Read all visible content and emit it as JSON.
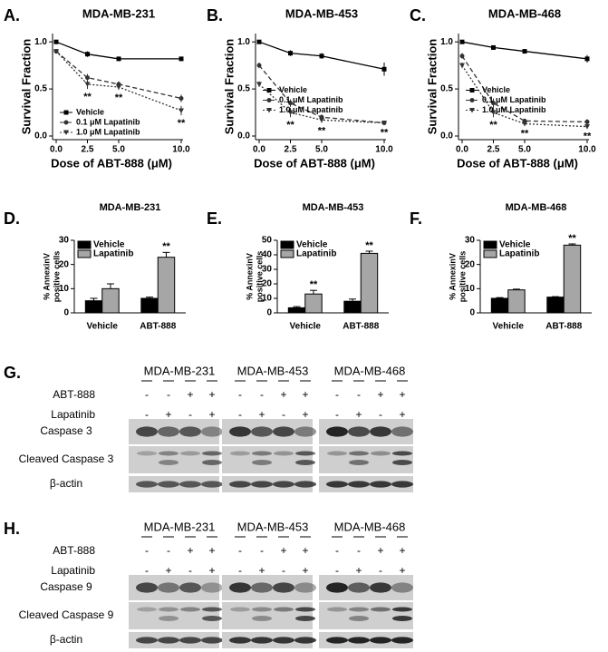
{
  "chart_data": [
    {
      "type": "line",
      "panel": "A.",
      "title": "MDA-MB-231",
      "x_label": "Dose of ABT-888 (μM)",
      "y_label": "Survival Fraction",
      "x": [
        0,
        2.5,
        5,
        10
      ],
      "xlim": [
        0,
        10
      ],
      "xticks": [
        {
          "value": 0,
          "label": "0.0"
        },
        2.5,
        {
          "value": 5,
          "label": "5.0"
        },
        {
          "value": 10,
          "label": "10.0"
        }
      ],
      "ylim": [
        0,
        1.05
      ],
      "yticks": [
        {
          "value": 0,
          "label": "0.0"
        },
        0.5,
        {
          "value": 1,
          "label": "1.0"
        }
      ],
      "legend": "lower left",
      "series": [
        {
          "name": "Vehicle",
          "color": "#000000",
          "values": [
            1.0,
            0.87,
            0.82,
            0.82
          ],
          "errors": [
            0.02,
            0.03,
            0.02,
            0.02
          ]
        },
        {
          "name": "0.1 μM Lapatinib",
          "color": "#333333",
          "values": [
            0.9,
            0.62,
            0.55,
            0.4
          ],
          "errors": [
            0.02,
            0.04,
            0.03,
            0.04
          ]
        },
        {
          "name": "1.0 μM Lapatinib",
          "color": "#333333",
          "values": [
            0.9,
            0.55,
            0.52,
            0.27
          ],
          "errors": [
            0.02,
            0.05,
            0.03,
            0.05
          ]
        }
      ],
      "annotations": [
        {
          "text": "**",
          "x": 2.5
        },
        {
          "text": "**",
          "x": 5
        },
        {
          "text": "**",
          "x": 10
        }
      ]
    },
    {
      "type": "line",
      "panel": "B.",
      "title": "MDA-MB-453",
      "x_label": "Dose of ABT-888 (μM)",
      "y_label": "Survival Fraction",
      "x": [
        0,
        2.5,
        5,
        10
      ],
      "xlim": [
        0,
        10
      ],
      "xticks": [
        {
          "value": 0,
          "label": "0.0"
        },
        2.5,
        {
          "value": 5,
          "label": "5.0"
        },
        {
          "value": 10,
          "label": "10.0"
        }
      ],
      "ylim": [
        0,
        1.05
      ],
      "yticks": [
        {
          "value": 0,
          "label": "0.0"
        },
        0.5,
        {
          "value": 1,
          "label": "1.0"
        }
      ],
      "legend": "center",
      "series": [
        {
          "name": "Vehicle",
          "color": "#000000",
          "values": [
            1.0,
            0.88,
            0.85,
            0.71
          ],
          "errors": [
            0.02,
            0.03,
            0.03,
            0.07
          ]
        },
        {
          "name": "0.1 μM Lapatinib",
          "color": "#333333",
          "values": [
            0.75,
            0.35,
            0.2,
            0.14
          ],
          "errors": [
            0.03,
            0.04,
            0.03,
            0.02
          ]
        },
        {
          "name": "1.0 μM Lapatinib",
          "color": "#333333",
          "values": [
            0.55,
            0.25,
            0.17,
            0.14
          ],
          "errors": [
            0.03,
            0.05,
            0.03,
            0.02
          ]
        }
      ],
      "annotations": [
        {
          "text": "**",
          "x": 2.5
        },
        {
          "text": "**",
          "x": 5
        },
        {
          "text": "**",
          "x": 10
        }
      ]
    },
    {
      "type": "line",
      "panel": "C.",
      "title": "MDA-MB-468",
      "x_label": "Dose of ABT-888 (μM)",
      "y_label": "Survival Fraction",
      "x": [
        0,
        2.5,
        5,
        10
      ],
      "xlim": [
        0,
        10
      ],
      "xticks": [
        {
          "value": 0,
          "label": "0.0"
        },
        2.5,
        {
          "value": 5,
          "label": "5.0"
        },
        {
          "value": 10,
          "label": "10.0"
        }
      ],
      "ylim": [
        0,
        1.05
      ],
      "yticks": [
        {
          "value": 0,
          "label": "0.0"
        },
        0.5,
        {
          "value": 1,
          "label": "1.0"
        }
      ],
      "legend": "center",
      "series": [
        {
          "name": "Vehicle",
          "color": "#000000",
          "values": [
            1.0,
            0.94,
            0.9,
            0.82
          ],
          "errors": [
            0.02,
            0.02,
            0.02,
            0.04
          ]
        },
        {
          "name": "0.1 μM Lapatinib",
          "color": "#333333",
          "values": [
            0.85,
            0.35,
            0.16,
            0.15
          ],
          "errors": [
            0.03,
            0.05,
            0.02,
            0.03
          ]
        },
        {
          "name": "1.0 μM Lapatinib",
          "color": "#333333",
          "values": [
            0.75,
            0.25,
            0.13,
            0.1
          ],
          "errors": [
            0.03,
            0.05,
            0.02,
            0.02
          ]
        }
      ],
      "annotations": [
        {
          "text": "**",
          "x": 2.5
        },
        {
          "text": "**",
          "x": 5
        },
        {
          "text": "**",
          "x": 10
        }
      ]
    },
    {
      "type": "bar",
      "panel": "D.",
      "title": "MDA-MB-231",
      "y_label": [
        "% AnnexinV",
        "positive cells"
      ],
      "categories": [
        "Vehicle",
        "ABT-888"
      ],
      "ylim": [
        0,
        30
      ],
      "yticks": [
        0,
        10,
        20,
        30
      ],
      "legend": "upper left",
      "series": [
        {
          "name": "Vehicle",
          "color": "#000000",
          "values": [
            5,
            6
          ],
          "errors": [
            1,
            0.5
          ]
        },
        {
          "name": "Lapatinib",
          "color": "#a6a6a6",
          "values": [
            10,
            23
          ],
          "errors": [
            2,
            2
          ]
        }
      ],
      "annotations": [
        {
          "text": "**",
          "series": 1,
          "category": 1
        }
      ]
    },
    {
      "type": "bar",
      "panel": "E.",
      "title": "MDA-MB-453",
      "y_label": [
        "% AnnexinV",
        "positive cells"
      ],
      "categories": [
        "Vehicle",
        "ABT-888"
      ],
      "ylim": [
        0,
        50
      ],
      "yticks": [
        0,
        10,
        20,
        30,
        40,
        50
      ],
      "legend": "upper left",
      "series": [
        {
          "name": "Vehicle",
          "color": "#000000",
          "values": [
            3.5,
            8
          ],
          "errors": [
            0.8,
            1.5
          ]
        },
        {
          "name": "Lapatinib",
          "color": "#a6a6a6",
          "values": [
            13,
            41
          ],
          "errors": [
            2.5,
            1.5
          ]
        }
      ],
      "annotations": [
        {
          "text": "**",
          "series": 1,
          "category": 0
        },
        {
          "text": "**",
          "series": 1,
          "category": 1
        }
      ]
    },
    {
      "type": "bar",
      "panel": "F.",
      "title": "MDA-MB-468",
      "y_label": [
        "% AnnexinV",
        "positive cells"
      ],
      "categories": [
        "Vehicle",
        "ABT-888"
      ],
      "ylim": [
        0,
        30
      ],
      "yticks": [
        0,
        10,
        20,
        30
      ],
      "legend": "upper left",
      "series": [
        {
          "name": "Vehicle",
          "color": "#000000",
          "values": [
            6,
            6.5
          ],
          "errors": [
            0.3,
            0.2
          ]
        },
        {
          "name": "Lapatinib",
          "color": "#a6a6a6",
          "values": [
            9.5,
            28
          ],
          "errors": [
            0.3,
            0.5
          ]
        }
      ],
      "annotations": [
        {
          "text": "**",
          "series": 1,
          "category": 1
        }
      ]
    }
  ],
  "blots": [
    {
      "panel": "G.",
      "cell_lines": [
        "MDA-MB-231",
        "MDA-MB-453",
        "MDA-MB-468"
      ],
      "treatments": [
        {
          "label": "ABT-888",
          "signs": [
            "-",
            "-",
            "+",
            "+"
          ]
        },
        {
          "label": "Lapatinib",
          "signs": [
            "-",
            "+",
            "-",
            "+"
          ]
        }
      ],
      "bands": [
        "Caspase 3",
        "Cleaved Caspase 3",
        "β-actin"
      ]
    },
    {
      "panel": "H.",
      "cell_lines": [
        "MDA-MB-231",
        "MDA-MB-453",
        "MDA-MB-468"
      ],
      "treatments": [
        {
          "label": "ABT-888",
          "signs": [
            "-",
            "-",
            "+",
            "+"
          ]
        },
        {
          "label": "Lapatinib",
          "signs": [
            "-",
            "+",
            "-",
            "+"
          ]
        }
      ],
      "bands": [
        "Caspase 9",
        "Cleaved Caspase 9",
        "β-actin"
      ]
    }
  ]
}
